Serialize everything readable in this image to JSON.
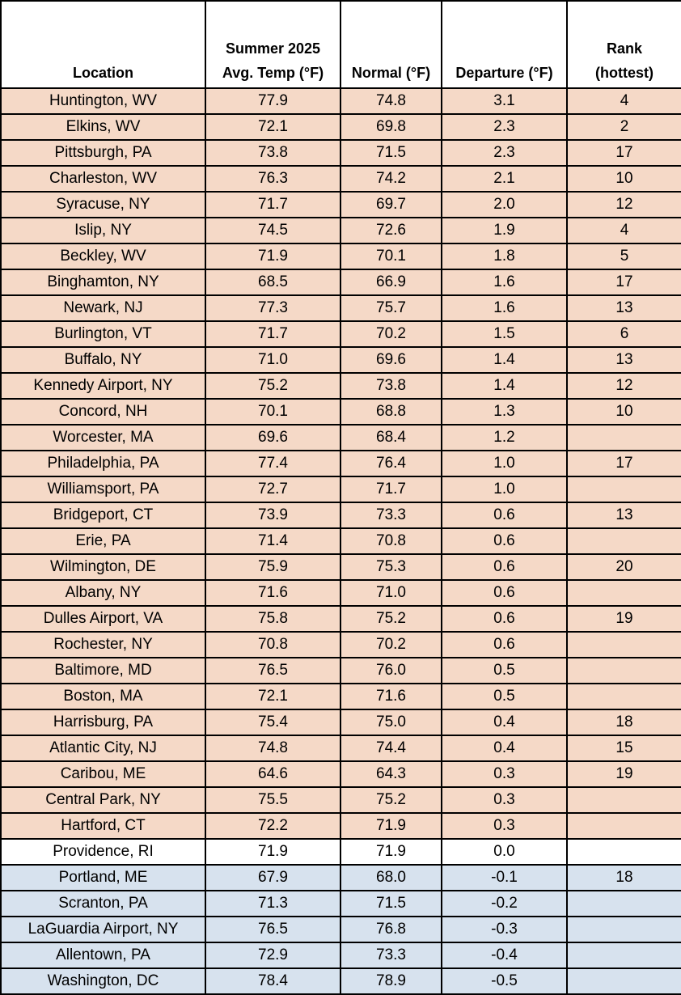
{
  "colors": {
    "warm": "#F5D9C7",
    "neutral": "#FFFFFF",
    "cool": "#D7E2EE",
    "border": "#000000"
  },
  "headers": [
    "Location",
    "Summer 2025\nAvg. Temp (°F)",
    "Normal (°F)",
    "Departure (°F)",
    "Rank\n(hottest)"
  ],
  "rows": [
    [
      "Huntington, WV",
      "77.9",
      "74.8",
      "3.1",
      "4"
    ],
    [
      "Elkins, WV",
      "72.1",
      "69.8",
      "2.3",
      "2"
    ],
    [
      "Pittsburgh, PA",
      "73.8",
      "71.5",
      "2.3",
      "17"
    ],
    [
      "Charleston, WV",
      "76.3",
      "74.2",
      "2.1",
      "10"
    ],
    [
      "Syracuse, NY",
      "71.7",
      "69.7",
      "2.0",
      "12"
    ],
    [
      "Islip, NY",
      "74.5",
      "72.6",
      "1.9",
      "4"
    ],
    [
      "Beckley, WV",
      "71.9",
      "70.1",
      "1.8",
      "5"
    ],
    [
      "Binghamton, NY",
      "68.5",
      "66.9",
      "1.6",
      "17"
    ],
    [
      "Newark, NJ",
      "77.3",
      "75.7",
      "1.6",
      "13"
    ],
    [
      "Burlington, VT",
      "71.7",
      "70.2",
      "1.5",
      "6"
    ],
    [
      "Buffalo, NY",
      "71.0",
      "69.6",
      "1.4",
      "13"
    ],
    [
      "Kennedy Airport, NY",
      "75.2",
      "73.8",
      "1.4",
      "12"
    ],
    [
      "Concord, NH",
      "70.1",
      "68.8",
      "1.3",
      "10"
    ],
    [
      "Worcester, MA",
      "69.6",
      "68.4",
      "1.2",
      ""
    ],
    [
      "Philadelphia, PA",
      "77.4",
      "76.4",
      "1.0",
      "17"
    ],
    [
      "Williamsport, PA",
      "72.7",
      "71.7",
      "1.0",
      ""
    ],
    [
      "Bridgeport, CT",
      "73.9",
      "73.3",
      "0.6",
      "13"
    ],
    [
      "Erie, PA",
      "71.4",
      "70.8",
      "0.6",
      ""
    ],
    [
      "Wilmington, DE",
      "75.9",
      "75.3",
      "0.6",
      "20"
    ],
    [
      "Albany, NY",
      "71.6",
      "71.0",
      "0.6",
      ""
    ],
    [
      "Dulles Airport, VA",
      "75.8",
      "75.2",
      "0.6",
      "19"
    ],
    [
      "Rochester, NY",
      "70.8",
      "70.2",
      "0.6",
      ""
    ],
    [
      "Baltimore, MD",
      "76.5",
      "76.0",
      "0.5",
      ""
    ],
    [
      "Boston, MA",
      "72.1",
      "71.6",
      "0.5",
      ""
    ],
    [
      "Harrisburg, PA",
      "75.4",
      "75.0",
      "0.4",
      "18"
    ],
    [
      "Atlantic City, NJ",
      "74.8",
      "74.4",
      "0.4",
      "15"
    ],
    [
      "Caribou, ME",
      "64.6",
      "64.3",
      "0.3",
      "19"
    ],
    [
      "Central Park, NY",
      "75.5",
      "75.2",
      "0.3",
      ""
    ],
    [
      "Hartford, CT",
      "72.2",
      "71.9",
      "0.3",
      ""
    ],
    [
      "Providence, RI",
      "71.9",
      "71.9",
      "0.0",
      ""
    ],
    [
      "Portland, ME",
      "67.9",
      "68.0",
      "-0.1",
      "18"
    ],
    [
      "Scranton, PA",
      "71.3",
      "71.5",
      "-0.2",
      ""
    ],
    [
      "LaGuardia Airport, NY",
      "76.5",
      "76.8",
      "-0.3",
      ""
    ],
    [
      "Allentown, PA",
      "72.9",
      "73.3",
      "-0.4",
      ""
    ],
    [
      "Washington, DC",
      "78.4",
      "78.9",
      "-0.5",
      ""
    ]
  ]
}
